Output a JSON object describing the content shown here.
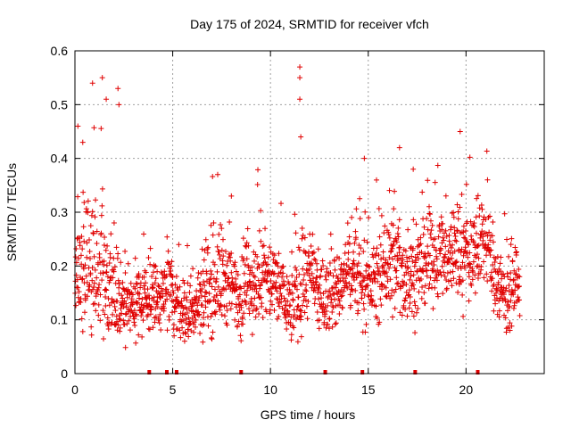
{
  "chart_data": {
    "type": "scatter",
    "title": "Day 175 of 2024, SRMTID for receiver vfch",
    "xlabel": "GPS time / hours",
    "ylabel": "SRMTID / TECUs",
    "xlim": [
      0,
      24
    ],
    "ylim": [
      0,
      0.6
    ],
    "x_ticks": [
      0,
      5,
      10,
      15,
      20
    ],
    "y_ticks": [
      0,
      0.1,
      0.2,
      0.3,
      0.4,
      0.5,
      0.6
    ],
    "x_tick_labels": [
      "0",
      "5",
      "10",
      "15",
      "20"
    ],
    "y_tick_labels": [
      "0",
      "0.1",
      "0.2",
      "0.3",
      "0.4",
      "0.5",
      "0.6"
    ],
    "grid": true,
    "marker": "+",
    "series_color": "#e00000",
    "envelope_hourly": {
      "x": [
        0.0,
        0.5,
        1.0,
        1.5,
        2.0,
        2.5,
        3.0,
        3.5,
        4.0,
        4.5,
        5.0,
        5.5,
        6.0,
        6.5,
        7.0,
        7.5,
        8.0,
        8.5,
        9.0,
        9.5,
        10.0,
        10.5,
        11.0,
        11.5,
        12.0,
        12.5,
        13.0,
        13.5,
        14.0,
        14.5,
        15.0,
        15.5,
        16.0,
        16.5,
        17.0,
        17.5,
        18.0,
        18.5,
        19.0,
        19.5,
        20.0,
        20.5,
        21.0,
        21.5,
        22.0,
        22.5
      ],
      "median": [
        0.19,
        0.22,
        0.2,
        0.17,
        0.15,
        0.13,
        0.13,
        0.14,
        0.14,
        0.15,
        0.15,
        0.12,
        0.11,
        0.15,
        0.17,
        0.18,
        0.16,
        0.14,
        0.17,
        0.18,
        0.17,
        0.16,
        0.12,
        0.15,
        0.19,
        0.13,
        0.14,
        0.15,
        0.2,
        0.18,
        0.16,
        0.18,
        0.2,
        0.2,
        0.18,
        0.19,
        0.2,
        0.22,
        0.22,
        0.23,
        0.21,
        0.24,
        0.25,
        0.18,
        0.15,
        0.15
      ],
      "spread": [
        0.07,
        0.09,
        0.08,
        0.07,
        0.05,
        0.04,
        0.04,
        0.04,
        0.04,
        0.04,
        0.04,
        0.04,
        0.03,
        0.05,
        0.06,
        0.06,
        0.05,
        0.05,
        0.05,
        0.06,
        0.05,
        0.05,
        0.04,
        0.05,
        0.05,
        0.04,
        0.04,
        0.04,
        0.05,
        0.05,
        0.04,
        0.05,
        0.06,
        0.06,
        0.05,
        0.05,
        0.05,
        0.05,
        0.05,
        0.06,
        0.05,
        0.05,
        0.05,
        0.05,
        0.04,
        0.04
      ]
    },
    "peaks": [
      {
        "x": 0.15,
        "y": 0.46
      },
      {
        "x": 0.4,
        "y": 0.43
      },
      {
        "x": 0.9,
        "y": 0.54
      },
      {
        "x": 1.4,
        "y": 0.55
      },
      {
        "x": 1.6,
        "y": 0.51
      },
      {
        "x": 2.2,
        "y": 0.53
      },
      {
        "x": 2.25,
        "y": 0.5
      },
      {
        "x": 7.3,
        "y": 0.37
      },
      {
        "x": 8.0,
        "y": 0.33
      },
      {
        "x": 11.5,
        "y": 0.57
      },
      {
        "x": 11.5,
        "y": 0.55
      },
      {
        "x": 11.5,
        "y": 0.51
      },
      {
        "x": 11.55,
        "y": 0.44
      },
      {
        "x": 14.8,
        "y": 0.4
      },
      {
        "x": 16.6,
        "y": 0.42
      },
      {
        "x": 17.3,
        "y": 0.38
      },
      {
        "x": 19.7,
        "y": 0.45
      },
      {
        "x": 21.1,
        "y": 0.36
      }
    ],
    "bottom_markers_x": [
      3.8,
      4.7,
      5.2,
      8.5,
      12.8,
      14.7,
      17.4,
      20.6
    ]
  }
}
